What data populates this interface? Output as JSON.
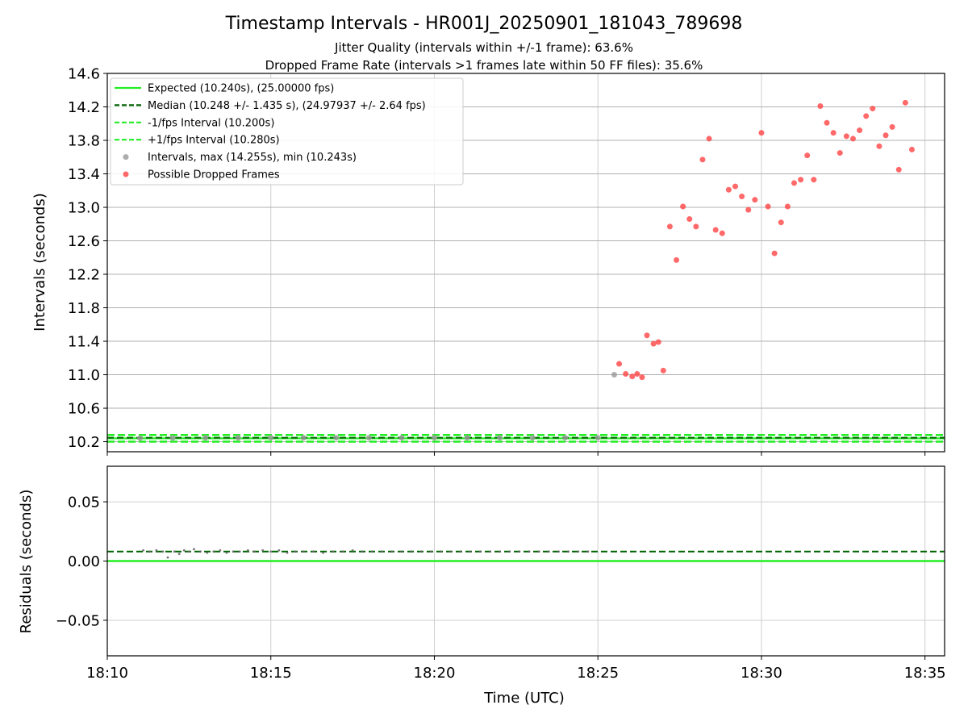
{
  "chart_data": {
    "type": "scatter",
    "title": "Timestamp Intervals - HR001J_20250901_181043_789698",
    "subtitle_1": "Jitter Quality (intervals within +/-1 frame): 63.6%",
    "subtitle_2": "Dropped Frame Rate (intervals >1 frames late within 50 FF files): 35.6%",
    "xlabel": "Time (UTC)",
    "x_ticks": [
      "18:10",
      "18:15",
      "18:20",
      "18:25",
      "18:30",
      "18:35"
    ],
    "x_range_minutes": [
      0,
      25.6
    ],
    "top": {
      "ylabel": "Intervals (seconds)",
      "ylim": [
        10.08,
        14.6
      ],
      "y_ticks": [
        "10.2",
        "10.6",
        "11.0",
        "11.4",
        "11.8",
        "12.2",
        "12.6",
        "13.0",
        "13.4",
        "13.8",
        "14.2",
        "14.6"
      ],
      "grid": true,
      "legend_position": "top-left",
      "legend": [
        {
          "label": "Expected (10.240s), (25.00000 fps)",
          "style": "solid",
          "color": "#22ee22"
        },
        {
          "label": "Median (10.248 +/- 1.435 s), (24.97937 +/- 2.64 fps)",
          "style": "dashed",
          "color": "#006400"
        },
        {
          "label": "-1/fps Interval (10.200s)",
          "style": "dashed",
          "color": "#22ee22"
        },
        {
          "label": "+1/fps Interval (10.280s)",
          "style": "dashed",
          "color": "#22ee22"
        },
        {
          "label": "Intervals, max (14.255s), min (10.243s)",
          "style": "dot",
          "color": "#999999"
        },
        {
          "label": "Possible Dropped Frames",
          "style": "dot",
          "color": "#ff4444"
        }
      ],
      "lines": {
        "expected": 10.24,
        "median": 10.248,
        "minus_one": 10.2,
        "plus_one": 10.28
      },
      "normal_intervals": [
        {
          "x": 1.0,
          "y": 10.243
        },
        {
          "x": 2.0,
          "y": 10.245
        },
        {
          "x": 3.0,
          "y": 10.246
        },
        {
          "x": 4.0,
          "y": 10.247
        },
        {
          "x": 5.0,
          "y": 10.248
        },
        {
          "x": 6.0,
          "y": 10.247
        },
        {
          "x": 7.0,
          "y": 10.248
        },
        {
          "x": 8.0,
          "y": 10.248
        },
        {
          "x": 9.0,
          "y": 10.247
        },
        {
          "x": 10.0,
          "y": 10.248
        },
        {
          "x": 11.0,
          "y": 10.247
        },
        {
          "x": 12.0,
          "y": 10.248
        },
        {
          "x": 13.0,
          "y": 10.247
        },
        {
          "x": 14.0,
          "y": 10.248
        },
        {
          "x": 15.0,
          "y": 10.248
        },
        {
          "x": 15.5,
          "y": 11.0
        }
      ],
      "dropped_frames": [
        {
          "x": 15.65,
          "y": 11.13
        },
        {
          "x": 15.85,
          "y": 11.01
        },
        {
          "x": 16.05,
          "y": 10.98
        },
        {
          "x": 16.2,
          "y": 11.01
        },
        {
          "x": 16.35,
          "y": 10.97
        },
        {
          "x": 16.5,
          "y": 11.47
        },
        {
          "x": 16.7,
          "y": 11.37
        },
        {
          "x": 16.85,
          "y": 11.39
        },
        {
          "x": 17.0,
          "y": 11.05
        },
        {
          "x": 17.2,
          "y": 12.77
        },
        {
          "x": 17.4,
          "y": 12.37
        },
        {
          "x": 17.6,
          "y": 13.01
        },
        {
          "x": 17.8,
          "y": 12.86
        },
        {
          "x": 18.0,
          "y": 12.77
        },
        {
          "x": 18.2,
          "y": 13.57
        },
        {
          "x": 18.4,
          "y": 13.82
        },
        {
          "x": 18.6,
          "y": 12.73
        },
        {
          "x": 18.8,
          "y": 12.69
        },
        {
          "x": 19.0,
          "y": 13.21
        },
        {
          "x": 19.2,
          "y": 13.25
        },
        {
          "x": 19.4,
          "y": 13.13
        },
        {
          "x": 19.6,
          "y": 12.97
        },
        {
          "x": 19.8,
          "y": 13.09
        },
        {
          "x": 20.0,
          "y": 13.89
        },
        {
          "x": 20.2,
          "y": 13.01
        },
        {
          "x": 20.4,
          "y": 12.45
        },
        {
          "x": 20.6,
          "y": 12.82
        },
        {
          "x": 20.8,
          "y": 13.01
        },
        {
          "x": 21.0,
          "y": 13.29
        },
        {
          "x": 21.2,
          "y": 13.33
        },
        {
          "x": 21.4,
          "y": 13.62
        },
        {
          "x": 21.6,
          "y": 13.33
        },
        {
          "x": 21.8,
          "y": 14.21
        },
        {
          "x": 22.0,
          "y": 14.01
        },
        {
          "x": 22.2,
          "y": 13.89
        },
        {
          "x": 22.4,
          "y": 13.65
        },
        {
          "x": 22.6,
          "y": 13.85
        },
        {
          "x": 22.8,
          "y": 13.82
        },
        {
          "x": 23.0,
          "y": 13.92
        },
        {
          "x": 23.2,
          "y": 14.09
        },
        {
          "x": 23.4,
          "y": 14.18
        },
        {
          "x": 23.6,
          "y": 13.73
        },
        {
          "x": 23.8,
          "y": 13.86
        },
        {
          "x": 24.0,
          "y": 13.96
        },
        {
          "x": 24.2,
          "y": 13.45
        },
        {
          "x": 24.4,
          "y": 14.25
        },
        {
          "x": 24.6,
          "y": 13.69
        }
      ]
    },
    "bottom": {
      "ylabel": "Residuals (seconds)",
      "ylim": [
        -0.08,
        0.08
      ],
      "y_ticks": [
        "0.05",
        "0.00",
        "−0.05"
      ],
      "grid": true,
      "expected_residual": 0.0,
      "median_residual": 0.008,
      "residual_points": [
        {
          "x": 1.1,
          "y": 0.009
        },
        {
          "x": 1.3,
          "y": 0.008
        },
        {
          "x": 1.5,
          "y": 0.009
        },
        {
          "x": 1.7,
          "y": 0.008
        },
        {
          "x": 1.85,
          "y": 0.003
        },
        {
          "x": 2.05,
          "y": 0.008
        },
        {
          "x": 2.2,
          "y": 0.006
        },
        {
          "x": 2.35,
          "y": 0.009
        },
        {
          "x": 2.5,
          "y": 0.008
        },
        {
          "x": 2.65,
          "y": 0.01
        },
        {
          "x": 2.85,
          "y": 0.008
        },
        {
          "x": 3.05,
          "y": 0.007
        },
        {
          "x": 3.25,
          "y": 0.008
        },
        {
          "x": 3.45,
          "y": 0.009
        },
        {
          "x": 3.65,
          "y": 0.007
        },
        {
          "x": 3.85,
          "y": 0.008
        },
        {
          "x": 4.05,
          "y": 0.008
        },
        {
          "x": 4.3,
          "y": 0.009
        },
        {
          "x": 4.5,
          "y": 0.008
        },
        {
          "x": 4.75,
          "y": 0.009
        },
        {
          "x": 5.0,
          "y": 0.008
        },
        {
          "x": 5.25,
          "y": 0.009
        },
        {
          "x": 5.5,
          "y": 0.007
        },
        {
          "x": 5.75,
          "y": 0.008
        },
        {
          "x": 6.0,
          "y": 0.008
        },
        {
          "x": 6.3,
          "y": 0.008
        },
        {
          "x": 6.6,
          "y": 0.007
        },
        {
          "x": 6.9,
          "y": 0.008
        },
        {
          "x": 7.2,
          "y": 0.008
        },
        {
          "x": 7.5,
          "y": 0.009
        },
        {
          "x": 7.8,
          "y": 0.008
        },
        {
          "x": 8.1,
          "y": 0.008
        },
        {
          "x": 8.4,
          "y": 0.008
        },
        {
          "x": 8.7,
          "y": 0.008
        },
        {
          "x": 9.0,
          "y": 0.008
        },
        {
          "x": 9.3,
          "y": 0.008
        },
        {
          "x": 9.6,
          "y": 0.008
        },
        {
          "x": 9.9,
          "y": 0.008
        },
        {
          "x": 10.2,
          "y": 0.008
        },
        {
          "x": 10.5,
          "y": 0.008
        },
        {
          "x": 10.8,
          "y": 0.008
        },
        {
          "x": 11.1,
          "y": 0.008
        },
        {
          "x": 11.4,
          "y": 0.008
        },
        {
          "x": 11.7,
          "y": 0.008
        },
        {
          "x": 12.0,
          "y": 0.008
        },
        {
          "x": 12.3,
          "y": 0.008
        },
        {
          "x": 12.6,
          "y": 0.008
        },
        {
          "x": 12.9,
          "y": 0.008
        },
        {
          "x": 13.2,
          "y": 0.008
        },
        {
          "x": 13.5,
          "y": 0.008
        },
        {
          "x": 13.8,
          "y": 0.008
        },
        {
          "x": 14.1,
          "y": 0.008
        },
        {
          "x": 14.4,
          "y": 0.008
        },
        {
          "x": 14.7,
          "y": 0.008
        }
      ]
    }
  }
}
